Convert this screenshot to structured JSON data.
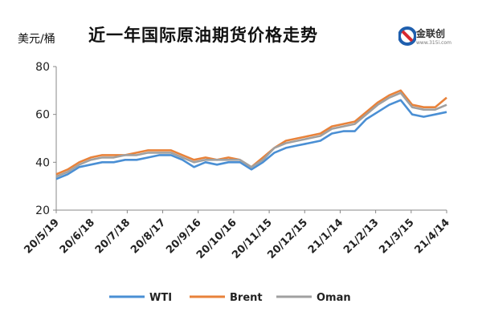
{
  "header": {
    "title": "近一年国际原油期货价格走势",
    "unit": "美元/桶",
    "logo_text": "金联创",
    "logo_url": "www.315i.com"
  },
  "colors": {
    "wti": "#4a8fd4",
    "brent": "#e8823a",
    "oman": "#a0a0a0",
    "axis": "#888888",
    "logo_red": "#d8282f",
    "logo_blue": "#1f5fae"
  },
  "chart_data": {
    "type": "line",
    "title": "近一年国际原油期货价格走势",
    "ylabel": "美元/桶",
    "xlabel": "",
    "ylim": [
      20,
      80
    ],
    "yticks": [
      20,
      40,
      60,
      80
    ],
    "grid": false,
    "legend_position": "bottom",
    "x_tick_labels": [
      "20/5/19",
      "20/6/18",
      "20/7/18",
      "20/8/17",
      "20/9/16",
      "20/10/16",
      "20/11/15",
      "20/12/15",
      "21/1/14",
      "21/2/13",
      "21/3/15",
      "21/4/14"
    ],
    "x": [
      "20/5/19",
      "20/5/29",
      "20/6/8",
      "20/6/18",
      "20/6/28",
      "20/7/8",
      "20/7/18",
      "20/7/28",
      "20/8/7",
      "20/8/17",
      "20/8/27",
      "20/9/6",
      "20/9/16",
      "20/9/26",
      "20/10/6",
      "20/10/16",
      "20/10/26",
      "20/11/5",
      "20/11/15",
      "20/11/25",
      "20/12/5",
      "20/12/15",
      "20/12/25",
      "21/1/4",
      "21/1/14",
      "21/1/24",
      "21/2/3",
      "21/2/13",
      "21/2/23",
      "21/3/5",
      "21/3/15",
      "21/3/25",
      "21/4/4",
      "21/4/14",
      "21/4/20"
    ],
    "series": [
      {
        "name": "WTI",
        "values": [
          33,
          35,
          38,
          39,
          40,
          40,
          41,
          41,
          42,
          43,
          43,
          41,
          38,
          40,
          39,
          40,
          40,
          37,
          40,
          44,
          46,
          47,
          48,
          49,
          52,
          53,
          53,
          58,
          61,
          64,
          66,
          60,
          59,
          60,
          61
        ]
      },
      {
        "name": "Brent",
        "values": [
          35,
          37,
          40,
          42,
          43,
          43,
          43,
          44,
          45,
          45,
          45,
          43,
          41,
          42,
          41,
          42,
          41,
          38,
          42,
          46,
          49,
          50,
          51,
          52,
          55,
          56,
          57,
          61,
          65,
          68,
          70,
          64,
          63,
          63,
          67
        ]
      },
      {
        "name": "Oman",
        "values": [
          34,
          36,
          39,
          41,
          42,
          42,
          43,
          43,
          44,
          44,
          44,
          42,
          40,
          41,
          41,
          41,
          41,
          38,
          41,
          46,
          48,
          49,
          50,
          51,
          54,
          55,
          56,
          60,
          64,
          67,
          69,
          63,
          62,
          62,
          64
        ]
      }
    ]
  }
}
